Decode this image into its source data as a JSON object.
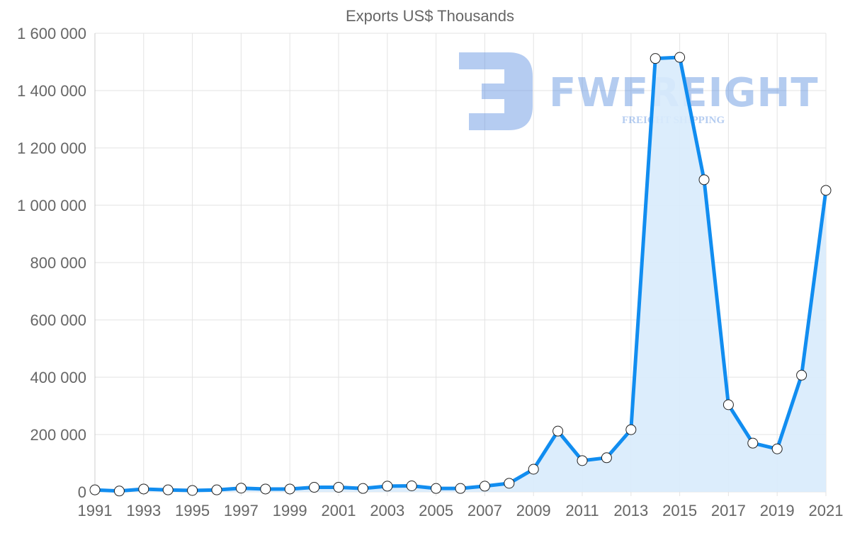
{
  "chart_data": {
    "type": "line",
    "title": "Exports US$ Thousands",
    "xlabel": "",
    "ylabel": "",
    "x": [
      1991,
      1992,
      1993,
      1994,
      1995,
      1996,
      1997,
      1998,
      1999,
      2000,
      2001,
      2002,
      2003,
      2004,
      2005,
      2006,
      2007,
      2008,
      2009,
      2010,
      2011,
      2012,
      2013,
      2014,
      2015,
      2016,
      2017,
      2018,
      2019,
      2020,
      2021
    ],
    "series": [
      {
        "name": "Exports US$ Thousands",
        "values": [
          7000,
          3000,
          10000,
          7000,
          5000,
          7000,
          13000,
          10000,
          10000,
          16000,
          16000,
          12000,
          20000,
          21000,
          12000,
          12000,
          20000,
          30000,
          79000,
          212000,
          109000,
          119000,
          217000,
          1512000,
          1516000,
          1089000,
          304000,
          170000,
          150000,
          407000,
          1052000
        ]
      }
    ],
    "ylim": [
      0,
      1600000
    ],
    "yticks": [
      "0",
      "200 000",
      "400 000",
      "600 000",
      "800 000",
      "1 000 000",
      "1 200 000",
      "1 400 000",
      "1 600 000"
    ],
    "xticks": [
      "1991",
      "1993",
      "1995",
      "1997",
      "1999",
      "2001",
      "2003",
      "2005",
      "2007",
      "2009",
      "2011",
      "2013",
      "2015",
      "2017",
      "2019",
      "2021"
    ],
    "grid": true,
    "fill": true,
    "colors": {
      "line": "#118df0",
      "fill": "#d8ebfc",
      "grid": "#e3e3e3",
      "point": "#ffffff"
    }
  },
  "watermark": {
    "brand": "FWFREIGHT",
    "tagline": "FREIGHT SHIPPING"
  }
}
